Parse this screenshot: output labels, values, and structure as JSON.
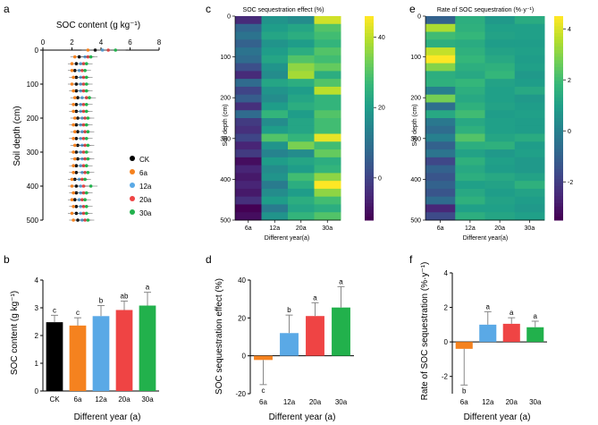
{
  "colors": {
    "CK": "#000000",
    "6a": "#f5821f",
    "12a": "#5aa9e6",
    "20a": "#ef4444",
    "30a": "#22b14c",
    "viridis": [
      "#440154",
      "#482878",
      "#3e4a89",
      "#31688e",
      "#26828e",
      "#1f9e89",
      "#35b779",
      "#6ece58",
      "#b5de2b",
      "#fde725"
    ]
  },
  "panels": {
    "a": {
      "letter": "a",
      "title": "SOC content (g kg⁻¹)",
      "ylabel": "Soil depth (cm)",
      "xticks": [
        "0",
        "2",
        "4",
        "6",
        "8"
      ],
      "yticks": [
        "0",
        "100",
        "200",
        "300",
        "400",
        "500"
      ],
      "legend": [
        "CK",
        "6a",
        "12a",
        "20a",
        "30a"
      ]
    },
    "b": {
      "letter": "b",
      "ylabel": "SOC content (g kg⁻¹)",
      "xlabel": "Different year (a)",
      "yticks": [
        "0",
        "1",
        "2",
        "3",
        "4"
      ]
    },
    "c": {
      "letter": "c",
      "title": "SOC sequestration effect (%)",
      "ylabel": "Soil depth (cm)",
      "xlabel": "Different year(a)",
      "xticks": [
        "6a",
        "12a",
        "20a",
        "30a"
      ],
      "yticks": [
        "0",
        "100",
        "200",
        "300",
        "400",
        "500"
      ],
      "cbar_ticks": [
        "40",
        "20",
        "0"
      ]
    },
    "d": {
      "letter": "d",
      "ylabel": "SOC sequestration effect (%)",
      "xlabel": "Different year (a)",
      "yticks": [
        "40",
        "20",
        "0",
        "-20"
      ]
    },
    "e": {
      "letter": "e",
      "title": "Rate of SOC sequestration (%·y⁻¹)",
      "ylabel": "Soil depth (cm)",
      "xlabel": "Different year(a)",
      "xticks": [
        "6a",
        "12a",
        "20a",
        "30a"
      ],
      "yticks": [
        "0",
        "100",
        "200",
        "300",
        "400",
        "500"
      ],
      "cbar_ticks": [
        "4",
        "2",
        "0",
        "-2"
      ]
    },
    "f": {
      "letter": "f",
      "ylabel": "Rate of SOC sequestration (%·y⁻¹)",
      "xlabel": "Different year (a)",
      "yticks": [
        "4",
        "2",
        "0",
        "-2"
      ]
    }
  },
  "chart_data": [
    {
      "panel": "a",
      "type": "scatter",
      "title": "SOC content (g kg⁻¹)",
      "xlabel": "SOC content (g kg⁻¹)",
      "ylabel": "Soil depth (cm)",
      "xlim": [
        0,
        8
      ],
      "ylim": [
        0,
        500
      ],
      "depths": [
        0,
        20,
        40,
        60,
        80,
        100,
        120,
        140,
        160,
        180,
        200,
        220,
        240,
        260,
        280,
        300,
        320,
        340,
        360,
        380,
        400,
        420,
        440,
        460,
        480,
        500
      ],
      "series": [
        {
          "name": "CK",
          "values": [
            3.6,
            2.5,
            2.3,
            2.2,
            2.3,
            2.3,
            2.3,
            2.4,
            2.3,
            2.3,
            2.4,
            2.3,
            2.4,
            2.3,
            2.4,
            2.3,
            2.4,
            2.3,
            2.3,
            2.2,
            2.3,
            2.3,
            2.2,
            2.3,
            2.3,
            2.4
          ]
        },
        {
          "name": "6a",
          "values": [
            3.1,
            2.2,
            2.0,
            2.0,
            2.1,
            2.0,
            2.1,
            2.2,
            2.1,
            2.1,
            2.2,
            2.1,
            2.2,
            2.1,
            2.2,
            2.1,
            2.2,
            2.1,
            2.1,
            2.0,
            2.0,
            2.1,
            2.0,
            2.1,
            2.0,
            2.1
          ]
        },
        {
          "name": "12a",
          "values": [
            4.1,
            2.9,
            2.6,
            2.5,
            2.6,
            2.6,
            2.6,
            2.7,
            2.6,
            2.6,
            2.7,
            2.6,
            2.7,
            2.6,
            2.7,
            2.6,
            2.7,
            2.6,
            2.7,
            2.5,
            2.6,
            2.6,
            2.5,
            2.6,
            2.6,
            2.7
          ]
        },
        {
          "name": "20a",
          "values": [
            4.5,
            3.1,
            2.8,
            2.7,
            2.8,
            2.8,
            2.8,
            3.0,
            2.8,
            2.8,
            2.9,
            2.8,
            2.9,
            2.8,
            2.9,
            2.8,
            2.9,
            2.8,
            2.9,
            2.7,
            2.8,
            2.8,
            2.7,
            2.8,
            2.8,
            2.9
          ]
        },
        {
          "name": "30a",
          "values": [
            5.0,
            3.3,
            3.0,
            2.9,
            3.0,
            3.0,
            3.0,
            3.2,
            3.0,
            3.0,
            3.1,
            3.0,
            3.1,
            3.0,
            3.1,
            3.0,
            3.1,
            3.0,
            3.1,
            2.9,
            3.3,
            3.0,
            2.9,
            3.0,
            3.0,
            3.1
          ]
        }
      ]
    },
    {
      "panel": "b",
      "type": "bar",
      "xlabel": "Different year (a)",
      "ylabel": "SOC content (g kg⁻¹)",
      "ylim": [
        0,
        4
      ],
      "categories": [
        "CK",
        "6a",
        "12a",
        "20a",
        "30a"
      ],
      "values": [
        2.48,
        2.36,
        2.7,
        2.92,
        3.08
      ],
      "errors": [
        0.25,
        0.28,
        0.38,
        0.32,
        0.48
      ],
      "letters": [
        "c",
        "c",
        "b",
        "ab",
        "a"
      ]
    },
    {
      "panel": "c",
      "type": "heatmap",
      "title": "SOC sequestration effect (%)",
      "xlabel": "Different year(a)",
      "ylabel": "Soil depth (cm)",
      "categories": [
        "6a",
        "12a",
        "20a",
        "30a"
      ],
      "depths": [
        0,
        20,
        40,
        60,
        80,
        100,
        120,
        140,
        160,
        180,
        200,
        220,
        240,
        260,
        280,
        300,
        320,
        340,
        360,
        380,
        400,
        420,
        440,
        460,
        480,
        500
      ],
      "color_range": [
        -12,
        46
      ],
      "values": [
        [
          -5,
          18,
          16,
          42
        ],
        [
          7,
          20,
          22,
          30
        ],
        [
          10,
          22,
          24,
          28
        ],
        [
          6,
          18,
          20,
          26
        ],
        [
          10,
          20,
          24,
          30
        ],
        [
          8,
          22,
          30,
          28
        ],
        [
          2,
          18,
          36,
          32
        ],
        [
          -5,
          16,
          38,
          24
        ],
        [
          8,
          22,
          24,
          30
        ],
        [
          0,
          18,
          20,
          40
        ],
        [
          5,
          16,
          22,
          26
        ],
        [
          -4,
          20,
          24,
          26
        ],
        [
          8,
          26,
          20,
          30
        ],
        [
          -2,
          16,
          22,
          28
        ],
        [
          -4,
          20,
          22,
          28
        ],
        [
          0,
          30,
          26,
          44
        ],
        [
          -6,
          18,
          34,
          28
        ],
        [
          -2,
          14,
          16,
          32
        ],
        [
          -10,
          20,
          22,
          24
        ],
        [
          -6,
          16,
          20,
          26
        ],
        [
          -8,
          18,
          28,
          36
        ],
        [
          -6,
          12,
          24,
          48
        ],
        [
          -8,
          16,
          20,
          36
        ],
        [
          -4,
          20,
          24,
          28
        ],
        [
          -14,
          12,
          22,
          24
        ],
        [
          -10,
          18,
          26,
          30
        ]
      ]
    },
    {
      "panel": "d",
      "type": "bar",
      "xlabel": "Different year (a)",
      "ylabel": "SOC sequestration effect (%)",
      "ylim": [
        -20,
        40
      ],
      "categories": [
        "6a",
        "12a",
        "20a",
        "30a"
      ],
      "values": [
        -2.2,
        12.0,
        21.0,
        25.5
      ],
      "errors": [
        13.0,
        9.5,
        7.0,
        11.0
      ],
      "letters": [
        "c",
        "b",
        "a",
        "a"
      ]
    },
    {
      "panel": "e",
      "type": "heatmap",
      "title": "Rate of SOC sequestration (%·y⁻¹)",
      "xlabel": "Different year(a)",
      "ylabel": "Soil depth (cm)",
      "categories": [
        "6a",
        "12a",
        "20a",
        "30a"
      ],
      "depths": [
        0,
        20,
        40,
        60,
        80,
        100,
        120,
        140,
        160,
        180,
        200,
        220,
        240,
        260,
        280,
        300,
        320,
        340,
        360,
        380,
        400,
        420,
        440,
        460,
        480,
        500
      ],
      "color_range": [
        -3.5,
        4.5
      ],
      "values": [
        [
          -1.0,
          1.5,
          0.8,
          1.4
        ],
        [
          3.5,
          1.6,
          1.0,
          1.0
        ],
        [
          2.0,
          1.8,
          1.1,
          1.0
        ],
        [
          1.5,
          1.4,
          0.9,
          0.9
        ],
        [
          3.8,
          1.6,
          1.1,
          1.0
        ],
        [
          4.6,
          1.8,
          1.3,
          0.9
        ],
        [
          3.0,
          1.5,
          1.6,
          1.0
        ],
        [
          1.5,
          1.3,
          1.8,
          0.8
        ],
        [
          1.6,
          1.8,
          1.1,
          0.9
        ],
        [
          0.0,
          1.5,
          1.0,
          1.3
        ],
        [
          2.8,
          1.3,
          1.0,
          0.8
        ],
        [
          -0.6,
          1.6,
          1.1,
          0.9
        ],
        [
          1.3,
          2.0,
          0.9,
          1.0
        ],
        [
          -0.3,
          1.3,
          1.0,
          0.9
        ],
        [
          -0.7,
          1.6,
          1.0,
          0.9
        ],
        [
          0.0,
          2.3,
          1.2,
          1.4
        ],
        [
          -1.0,
          1.5,
          1.6,
          0.9
        ],
        [
          -0.4,
          1.1,
          0.8,
          1.0
        ],
        [
          -1.8,
          1.6,
          1.0,
          0.8
        ],
        [
          -1.0,
          1.3,
          0.9,
          0.8
        ],
        [
          -1.4,
          1.5,
          1.3,
          1.1
        ],
        [
          -1.0,
          1.0,
          1.1,
          1.6
        ],
        [
          -1.4,
          1.3,
          0.9,
          1.1
        ],
        [
          -0.7,
          1.6,
          1.1,
          0.9
        ],
        [
          -2.6,
          1.0,
          1.0,
          0.8
        ],
        [
          -1.7,
          1.5,
          1.2,
          1.0
        ]
      ]
    },
    {
      "panel": "f",
      "type": "bar",
      "xlabel": "Different year (a)",
      "ylabel": "Rate of SOC sequestration (%·y⁻¹)",
      "ylim": [
        -3,
        4
      ],
      "categories": [
        "6a",
        "12a",
        "20a",
        "30a"
      ],
      "values": [
        -0.4,
        1.0,
        1.05,
        0.85
      ],
      "errors": [
        2.1,
        0.75,
        0.35,
        0.35
      ],
      "letters": [
        "b",
        "a",
        "a",
        "a"
      ]
    }
  ]
}
